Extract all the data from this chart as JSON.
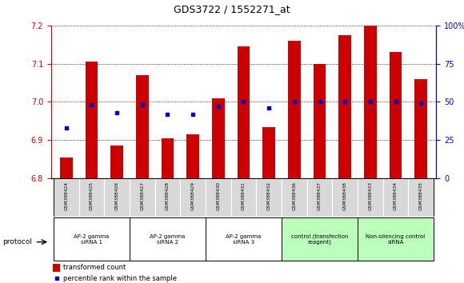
{
  "title": "GDS3722 / 1552271_at",
  "samples": [
    "GSM388424",
    "GSM388425",
    "GSM388426",
    "GSM388427",
    "GSM388428",
    "GSM388429",
    "GSM388430",
    "GSM388431",
    "GSM388432",
    "GSM388436",
    "GSM388437",
    "GSM388438",
    "GSM388433",
    "GSM388434",
    "GSM388435"
  ],
  "transformed_count": [
    6.855,
    7.105,
    6.885,
    7.07,
    6.905,
    6.915,
    7.01,
    7.145,
    6.935,
    7.16,
    7.1,
    7.175,
    7.2,
    7.13,
    7.06
  ],
  "percentile_rank": [
    33,
    48,
    43,
    48,
    42,
    42,
    47,
    50,
    46,
    50,
    50,
    50,
    50,
    50,
    49
  ],
  "bar_color": "#cc0000",
  "dot_color": "#0000cc",
  "ylim_left": [
    6.8,
    7.2
  ],
  "ylim_right": [
    0,
    100
  ],
  "yticks_left": [
    6.8,
    6.9,
    7.0,
    7.1,
    7.2
  ],
  "ytick_labels_right": [
    "0",
    "25",
    "50",
    "75",
    "100%"
  ],
  "groups": [
    {
      "label": "AP-2 gamma\nsiRNA 1",
      "start": 0,
      "end": 3,
      "color": "#ffffff"
    },
    {
      "label": "AP-2 gamma\nsiRNA 2",
      "start": 3,
      "end": 6,
      "color": "#ffffff"
    },
    {
      "label": "AP-2 gamma\nsiRNA 3",
      "start": 6,
      "end": 9,
      "color": "#ffffff"
    },
    {
      "label": "control (transfection\nreagent)",
      "start": 9,
      "end": 12,
      "color": "#bbffbb"
    },
    {
      "label": "Non-silencing control\nsiRNA",
      "start": 12,
      "end": 15,
      "color": "#bbffbb"
    }
  ],
  "protocol_label": "protocol",
  "legend_bar_label": "transformed count",
  "legend_dot_label": "percentile rank within the sample",
  "tick_color_left": "#cc0000",
  "tick_color_right": "#0000cc"
}
